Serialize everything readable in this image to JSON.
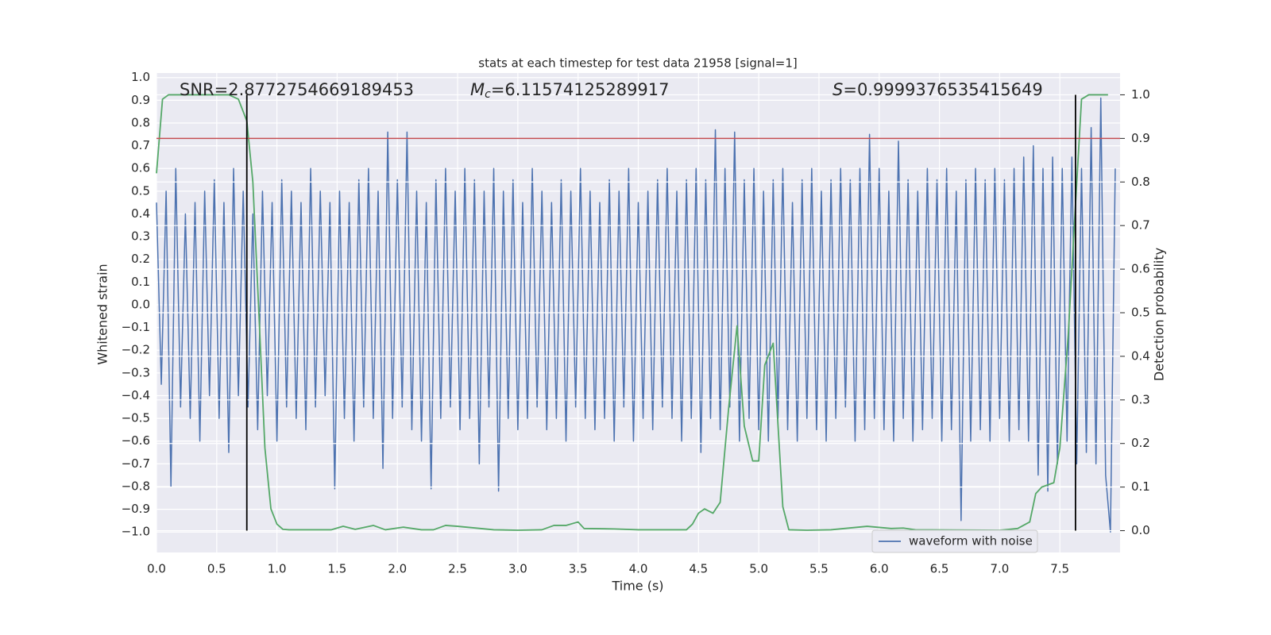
{
  "chart_data": {
    "type": "line",
    "title": "stats at each timestep for test data 21958 [signal=1]",
    "x_label": "Time (s)",
    "y_label": "Whitened strain",
    "y2_label": "Detection probability",
    "annotations": [
      {
        "text": "SNR=2.8772754669189453"
      },
      {
        "symbol": "M",
        "subscript": "c",
        "text": "=6.11574125289917"
      },
      {
        "symbol": "S",
        "text": "=0.9999376535415649"
      }
    ],
    "xlim": [
      0,
      8
    ],
    "ylim": [
      -1.09,
      1.02
    ],
    "y2lim": [
      -0.05,
      1.05
    ],
    "xticks": [
      {
        "value": 0,
        "label": "0.0"
      },
      {
        "value": 0.5,
        "label": "0.5"
      },
      {
        "value": 1,
        "label": "1.0"
      },
      {
        "value": 1.5,
        "label": "1.5"
      },
      {
        "value": 2,
        "label": "2.0"
      },
      {
        "value": 2.5,
        "label": "2.5"
      },
      {
        "value": 3,
        "label": "3.0"
      },
      {
        "value": 3.5,
        "label": "3.5"
      },
      {
        "value": 4,
        "label": "4.0"
      },
      {
        "value": 4.5,
        "label": "4.5"
      },
      {
        "value": 5,
        "label": "5.0"
      },
      {
        "value": 5.5,
        "label": "5.5"
      },
      {
        "value": 6,
        "label": "6.0"
      },
      {
        "value": 6.5,
        "label": "6.5"
      },
      {
        "value": 7,
        "label": "7.0"
      },
      {
        "value": 7.5,
        "label": "7.5"
      }
    ],
    "yticks": [
      {
        "value": -1,
        "label": "−1.0"
      },
      {
        "value": -0.9,
        "label": "−0.9"
      },
      {
        "value": -0.8,
        "label": "−0.8"
      },
      {
        "value": -0.7,
        "label": "−0.7"
      },
      {
        "value": -0.6,
        "label": "−0.6"
      },
      {
        "value": -0.5,
        "label": "−0.5"
      },
      {
        "value": -0.4,
        "label": "−0.4"
      },
      {
        "value": -0.3,
        "label": "−0.3"
      },
      {
        "value": -0.2,
        "label": "−0.2"
      },
      {
        "value": -0.1,
        "label": "−0.1"
      },
      {
        "value": 0,
        "label": "0.0"
      },
      {
        "value": 0.1,
        "label": "0.1"
      },
      {
        "value": 0.2,
        "label": "0.2"
      },
      {
        "value": 0.3,
        "label": "0.3"
      },
      {
        "value": 0.4,
        "label": "0.4"
      },
      {
        "value": 0.5,
        "label": "0.5"
      },
      {
        "value": 0.6,
        "label": "0.6"
      },
      {
        "value": 0.7,
        "label": "0.7"
      },
      {
        "value": 0.8,
        "label": "0.8"
      },
      {
        "value": 0.9,
        "label": "0.9"
      },
      {
        "value": 1,
        "label": "1.0"
      }
    ],
    "y2ticks": [
      {
        "value": 0,
        "label": "0.0"
      },
      {
        "value": 0.1,
        "label": "0.1"
      },
      {
        "value": 0.2,
        "label": "0.2"
      },
      {
        "value": 0.3,
        "label": "0.3"
      },
      {
        "value": 0.4,
        "label": "0.4"
      },
      {
        "value": 0.5,
        "label": "0.5"
      },
      {
        "value": 0.6,
        "label": "0.6"
      },
      {
        "value": 0.7,
        "label": "0.7"
      },
      {
        "value": 0.8,
        "label": "0.8"
      },
      {
        "value": 0.9,
        "label": "0.9"
      },
      {
        "value": 1,
        "label": "1.0"
      }
    ],
    "grid": true,
    "legend_loc": "lower right",
    "hlines": [
      {
        "value": 0.9,
        "axis": "y2",
        "color": "#c44e52"
      }
    ],
    "vlines": {
      "x": [
        0.75,
        7.63
      ],
      "ymin": 0,
      "ymax": 1,
      "axis": "y2",
      "color": "#000000"
    },
    "series": [
      {
        "name": "waveform with noise",
        "color": "#4c72b0",
        "x": [
          0,
          0.04,
          0.08,
          0.12,
          0.16,
          0.2,
          0.24,
          0.28,
          0.32,
          0.36,
          0.4,
          0.44,
          0.48,
          0.52,
          0.56,
          0.6,
          0.64,
          0.68,
          0.72,
          0.76,
          0.8,
          0.84,
          0.88,
          0.92,
          0.96,
          1,
          1.04,
          1.08,
          1.12,
          1.16,
          1.2,
          1.24,
          1.28,
          1.32,
          1.36,
          1.4,
          1.44,
          1.48,
          1.52,
          1.56,
          1.6,
          1.64,
          1.68,
          1.72,
          1.76,
          1.8,
          1.84,
          1.88,
          1.92,
          1.96,
          2,
          2.04,
          2.08,
          2.12,
          2.16,
          2.2,
          2.24,
          2.28,
          2.32,
          2.36,
          2.4,
          2.44,
          2.48,
          2.52,
          2.56,
          2.6,
          2.64,
          2.68,
          2.72,
          2.76,
          2.8,
          2.84,
          2.88,
          2.92,
          2.96,
          3,
          3.04,
          3.08,
          3.12,
          3.16,
          3.2,
          3.24,
          3.28,
          3.32,
          3.36,
          3.4,
          3.44,
          3.48,
          3.52,
          3.56,
          3.6,
          3.64,
          3.68,
          3.72,
          3.76,
          3.8,
          3.84,
          3.88,
          3.92,
          3.96,
          4,
          4.04,
          4.08,
          4.12,
          4.16,
          4.2,
          4.24,
          4.28,
          4.32,
          4.36,
          4.4,
          4.44,
          4.48,
          4.52,
          4.56,
          4.6,
          4.64,
          4.68,
          4.72,
          4.76,
          4.8,
          4.84,
          4.88,
          4.92,
          4.96,
          5,
          5.04,
          5.08,
          5.12,
          5.16,
          5.2,
          5.24,
          5.28,
          5.32,
          5.36,
          5.4,
          5.44,
          5.48,
          5.52,
          5.56,
          5.6,
          5.64,
          5.68,
          5.72,
          5.76,
          5.8,
          5.84,
          5.88,
          5.92,
          5.96,
          6,
          6.04,
          6.08,
          6.12,
          6.16,
          6.2,
          6.24,
          6.28,
          6.32,
          6.36,
          6.4,
          6.44,
          6.48,
          6.52,
          6.56,
          6.6,
          6.64,
          6.68,
          6.72,
          6.76,
          6.8,
          6.84,
          6.88,
          6.92,
          6.96,
          7,
          7.04,
          7.08,
          7.12,
          7.16,
          7.2,
          7.24,
          7.28,
          7.32,
          7.36,
          7.4,
          7.44,
          7.48,
          7.52,
          7.56,
          7.6,
          7.64,
          7.68,
          7.72,
          7.76,
          7.8,
          7.84,
          7.88,
          7.92,
          7.96
        ],
        "values": [
          0.45,
          -0.35,
          0.5,
          -0.8,
          0.6,
          -0.45,
          0.4,
          -0.5,
          0.45,
          -0.6,
          0.5,
          -0.4,
          0.55,
          -0.5,
          0.45,
          -0.65,
          0.6,
          -0.4,
          0.5,
          -0.45,
          0.4,
          -0.55,
          0.5,
          -0.4,
          0.45,
          -0.6,
          0.55,
          -0.45,
          0.5,
          -0.5,
          0.45,
          -0.55,
          0.6,
          -0.45,
          0.5,
          -0.4,
          0.45,
          -0.81,
          0.5,
          -0.5,
          0.45,
          -0.6,
          0.55,
          -0.45,
          0.6,
          -0.5,
          0.5,
          -0.72,
          0.76,
          -0.5,
          0.55,
          -0.45,
          0.76,
          -0.55,
          0.5,
          -0.6,
          0.45,
          -0.81,
          0.55,
          -0.5,
          0.6,
          -0.45,
          0.5,
          -0.55,
          0.6,
          -0.5,
          0.55,
          -0.7,
          0.5,
          -0.45,
          0.6,
          -0.82,
          0.5,
          -0.5,
          0.55,
          -0.55,
          0.45,
          -0.5,
          0.6,
          -0.45,
          0.5,
          -0.55,
          0.45,
          -0.5,
          0.55,
          -0.6,
          0.5,
          -0.45,
          0.6,
          -0.5,
          0.5,
          -0.55,
          0.45,
          -0.5,
          0.55,
          -0.6,
          0.5,
          -0.45,
          0.6,
          -0.6,
          0.45,
          -0.5,
          0.5,
          -0.55,
          0.55,
          -0.45,
          0.6,
          -0.5,
          0.5,
          -0.6,
          0.55,
          -0.5,
          0.6,
          -0.65,
          0.55,
          -0.5,
          0.77,
          -0.55,
          0.6,
          -0.45,
          0.76,
          -0.6,
          0.55,
          -0.5,
          0.6,
          -0.55,
          0.5,
          -0.6,
          0.55,
          -0.5,
          0.6,
          -0.55,
          0.45,
          -0.6,
          0.55,
          -0.5,
          0.6,
          -0.55,
          0.5,
          -0.6,
          0.55,
          -0.5,
          0.6,
          -0.45,
          0.55,
          -0.6,
          0.6,
          -0.55,
          0.75,
          -0.5,
          0.6,
          -0.55,
          0.5,
          -0.6,
          0.72,
          -0.5,
          0.55,
          -0.6,
          0.5,
          -0.55,
          0.6,
          -0.5,
          0.55,
          -0.6,
          0.6,
          -0.55,
          0.5,
          -0.95,
          0.55,
          -0.6,
          0.6,
          -0.55,
          0.55,
          -0.6,
          0.6,
          -0.5,
          0.55,
          -0.6,
          0.6,
          -0.55,
          0.65,
          -0.6,
          0.7,
          -0.75,
          0.6,
          -0.82,
          0.65,
          -0.7,
          0.6,
          -0.6,
          0.65,
          -0.7,
          0.6,
          -0.65,
          0.78,
          -0.7,
          0.91,
          -0.75,
          -1.0,
          0.6
        ]
      },
      {
        "color": "#55a868",
        "axis": "y2",
        "x": [
          0,
          0.05,
          0.1,
          0.2,
          0.3,
          0.4,
          0.5,
          0.6,
          0.68,
          0.75,
          0.8,
          0.85,
          0.9,
          0.95,
          1,
          1.05,
          1.1,
          1.3,
          1.45,
          1.55,
          1.65,
          1.8,
          1.9,
          2.05,
          2.2,
          2.3,
          2.4,
          2.5,
          2.8,
          3,
          3.2,
          3.3,
          3.4,
          3.5,
          3.55,
          3.8,
          4,
          4.4,
          4.45,
          4.5,
          4.55,
          4.62,
          4.68,
          4.75,
          4.82,
          4.88,
          4.95,
          5,
          5.05,
          5.12,
          5.2,
          5.25,
          5.4,
          5.6,
          5.9,
          6.1,
          6.2,
          6.3,
          7,
          7.15,
          7.25,
          7.3,
          7.35,
          7.45,
          7.5,
          7.57,
          7.62,
          7.68,
          7.74,
          7.9
        ],
        "values": [
          0.82,
          0.99,
          1,
          1,
          1,
          1,
          1,
          1,
          0.99,
          0.94,
          0.8,
          0.5,
          0.19,
          0.05,
          0.015,
          0.003,
          0.002,
          0.002,
          0.002,
          0.01,
          0.003,
          0.012,
          0.002,
          0.008,
          0.002,
          0.002,
          0.012,
          0.01,
          0.002,
          0.001,
          0.002,
          0.012,
          0.012,
          0.02,
          0.005,
          0.004,
          0.002,
          0.002,
          0.015,
          0.04,
          0.05,
          0.04,
          0.065,
          0.28,
          0.47,
          0.24,
          0.16,
          0.16,
          0.38,
          0.43,
          0.055,
          0.002,
          0.001,
          0.002,
          0.01,
          0.005,
          0.006,
          0.002,
          0.001,
          0.005,
          0.02,
          0.085,
          0.1,
          0.11,
          0.19,
          0.45,
          0.7,
          0.99,
          1,
          1
        ]
      }
    ]
  }
}
